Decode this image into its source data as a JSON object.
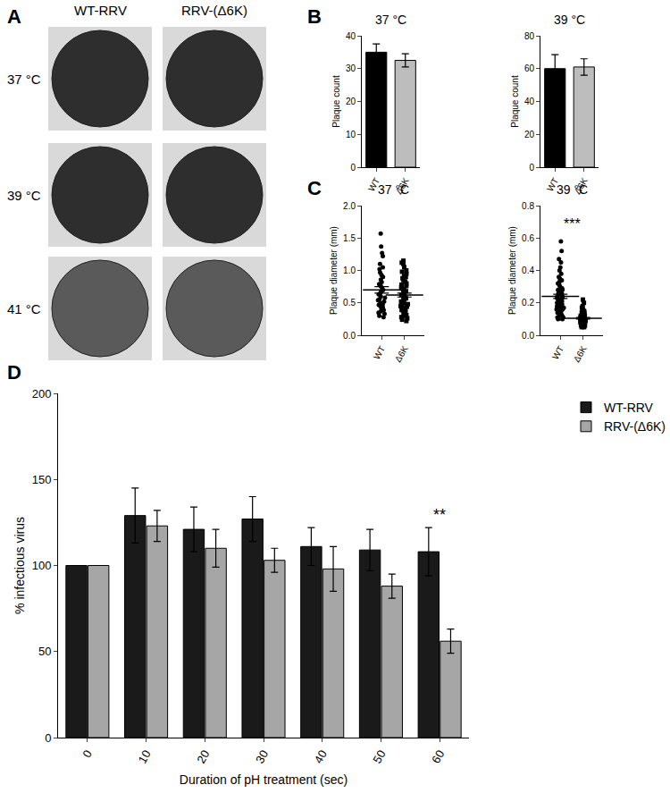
{
  "panel_labels": [
    "A",
    "B",
    "C",
    "D"
  ],
  "plates": {
    "columns": [
      "WT-RRV",
      "RRV-(Δ6K)"
    ],
    "rows": [
      "37 °C",
      "39 °C",
      "41 °C"
    ]
  },
  "chart_data": [
    {
      "type": "bar",
      "title": "37 °C",
      "categories": [
        "WT",
        "Δ6K"
      ],
      "values": [
        35,
        32.5
      ],
      "errors": [
        2.5,
        2
      ],
      "colors": [
        "#000000",
        "#bdbdbd"
      ],
      "ylabel": "Plaque count",
      "ylim": [
        0,
        40
      ],
      "yticks": [
        0,
        10,
        20,
        30,
        40
      ]
    },
    {
      "type": "bar",
      "title": "39 °C",
      "categories": [
        "WT",
        "Δ6K"
      ],
      "values": [
        60,
        61
      ],
      "errors": [
        8.5,
        5
      ],
      "colors": [
        "#000000",
        "#bdbdbd"
      ],
      "ylabel": "Plaque count",
      "ylim": [
        0,
        80
      ],
      "yticks": [
        0,
        20,
        40,
        60,
        80
      ]
    },
    {
      "type": "scatter",
      "title": "37 °C",
      "ylabel": "Plaque diameter (mm)",
      "series": [
        {
          "name": "WT",
          "marker": "circle",
          "color": "#000000",
          "mean": 0.7,
          "sem": 0.05,
          "values": [
            1.57,
            1.37,
            1.27,
            1.22,
            1.1,
            1.05,
            1.02,
            0.97,
            0.93,
            0.9,
            0.86,
            0.82,
            0.79,
            0.76,
            0.73,
            0.7,
            0.68,
            0.66,
            0.63,
            0.6,
            0.58,
            0.56,
            0.54,
            0.52,
            0.5,
            0.48,
            0.47,
            0.45,
            0.43,
            0.41,
            0.39,
            0.37,
            0.35,
            0.33,
            0.3,
            0.28
          ]
        },
        {
          "name": "Δ6K",
          "marker": "square",
          "color": "#000000",
          "mean": 0.62,
          "sem": 0.03,
          "values": [
            1.15,
            1.12,
            1.1,
            1.05,
            1.0,
            0.98,
            0.95,
            0.92,
            0.9,
            0.88,
            0.85,
            0.83,
            0.8,
            0.78,
            0.76,
            0.74,
            0.72,
            0.7,
            0.68,
            0.66,
            0.64,
            0.62,
            0.6,
            0.58,
            0.57,
            0.55,
            0.53,
            0.52,
            0.5,
            0.48,
            0.47,
            0.45,
            0.44,
            0.42,
            0.4,
            0.39,
            0.37,
            0.35,
            0.33,
            0.31,
            0.3,
            0.28,
            0.26,
            0.24,
            0.22
          ]
        }
      ],
      "ylim": [
        0,
        2
      ],
      "yticks": [
        {
          "value": 0,
          "label": "0.0"
        },
        {
          "value": 0.5,
          "label": "0.5"
        },
        {
          "value": 1,
          "label": "1.0"
        },
        {
          "value": 1.5,
          "label": "1.5"
        },
        {
          "value": 2,
          "label": "2.0"
        }
      ]
    },
    {
      "type": "scatter",
      "title": "39 °C",
      "ylabel": "Plaque diameter (mm)",
      "annotation": "***",
      "series": [
        {
          "name": "WT",
          "marker": "circle",
          "color": "#000000",
          "mean": 0.24,
          "sem": 0.013,
          "values": [
            0.58,
            0.52,
            0.47,
            0.45,
            0.42,
            0.4,
            0.38,
            0.36,
            0.35,
            0.34,
            0.33,
            0.32,
            0.31,
            0.3,
            0.29,
            0.28,
            0.28,
            0.27,
            0.26,
            0.26,
            0.25,
            0.25,
            0.24,
            0.24,
            0.23,
            0.23,
            0.22,
            0.22,
            0.21,
            0.21,
            0.2,
            0.2,
            0.2,
            0.19,
            0.19,
            0.18,
            0.18,
            0.18,
            0.17,
            0.17,
            0.16,
            0.16,
            0.16,
            0.15,
            0.15,
            0.14,
            0.14,
            0.13,
            0.13,
            0.12,
            0.12,
            0.11,
            0.11,
            0.1,
            0.1
          ]
        },
        {
          "name": "Δ6K",
          "marker": "square",
          "color": "#000000",
          "mean": 0.105,
          "sem": 0.005,
          "values": [
            0.22,
            0.2,
            0.18,
            0.17,
            0.16,
            0.15,
            0.15,
            0.14,
            0.14,
            0.13,
            0.13,
            0.13,
            0.12,
            0.12,
            0.12,
            0.12,
            0.11,
            0.11,
            0.11,
            0.11,
            0.11,
            0.1,
            0.1,
            0.1,
            0.1,
            0.1,
            0.1,
            0.09,
            0.09,
            0.09,
            0.09,
            0.09,
            0.09,
            0.08,
            0.08,
            0.08,
            0.08,
            0.08,
            0.07,
            0.07,
            0.07,
            0.07,
            0.06,
            0.06,
            0.06,
            0.05,
            0.05
          ]
        }
      ],
      "ylim": [
        0,
        0.8
      ],
      "yticks": [
        {
          "value": 0,
          "label": "0.0"
        },
        {
          "value": 0.2,
          "label": "0.2"
        },
        {
          "value": 0.4,
          "label": "0.4"
        },
        {
          "value": 0.6,
          "label": "0.6"
        },
        {
          "value": 0.8,
          "label": "0.8"
        }
      ]
    },
    {
      "type": "bar",
      "categories": [
        "0",
        "10",
        "20",
        "30",
        "40",
        "50",
        "60"
      ],
      "xlabel": "Duration of pH treatment (sec)",
      "ylabel": "% infectious virus",
      "series": [
        {
          "name": "WT-RRV",
          "color": "#1a1a1a",
          "values": [
            100,
            129,
            121,
            127,
            111,
            109,
            108
          ],
          "errors": [
            0,
            16,
            13,
            13,
            11,
            12,
            14
          ]
        },
        {
          "name": "RRV-(Δ6K)",
          "color": "#a6a6a6",
          "values": [
            100,
            123,
            110,
            103,
            98,
            88,
            56
          ],
          "errors": [
            0,
            9,
            11,
            7,
            13,
            7,
            7
          ]
        }
      ],
      "annotations": [
        {
          "text": "**",
          "category": "60"
        }
      ],
      "legend": "upper right",
      "ylim": [
        0,
        200
      ],
      "yticks": [
        0,
        50,
        100,
        150,
        200
      ]
    }
  ]
}
